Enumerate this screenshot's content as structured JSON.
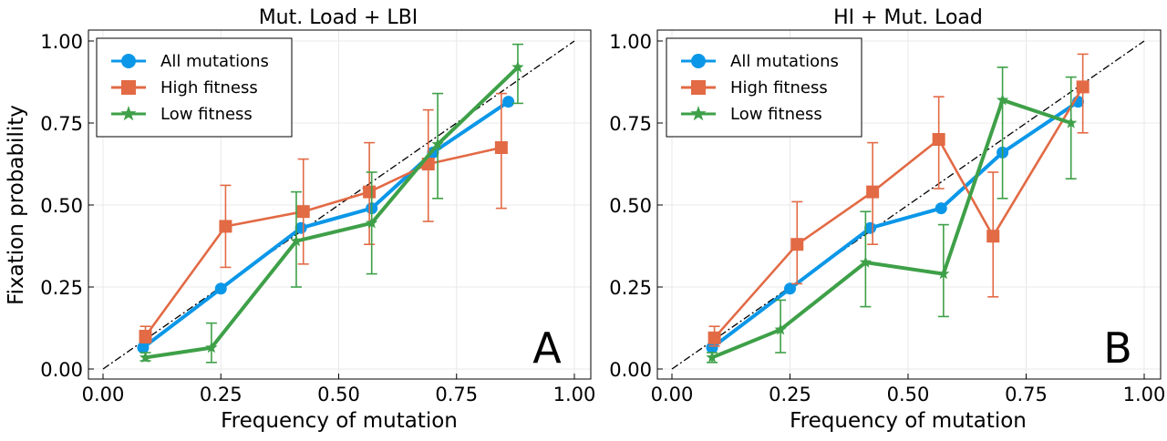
{
  "shared": {
    "ylabel": "Fixation probability",
    "legend_labels": [
      "All mutations",
      "High fitness",
      "Low fitness"
    ],
    "colors": {
      "all": "#0b97e8",
      "high": "#e26a45",
      "low": "#3ea048"
    }
  },
  "chart_data": [
    {
      "type": "line",
      "title": "Mut. Load + LBI",
      "panel_label": "A",
      "xlabel": "Frequency of mutation",
      "ylabel": "Fixation probability",
      "xlim": [
        0,
        1
      ],
      "ylim": [
        0,
        1
      ],
      "xticks": [
        "0.00",
        "0.25",
        "0.50",
        "0.75",
        "1.00"
      ],
      "yticks": [
        "0.00",
        "0.25",
        "0.50",
        "0.75",
        "1.00"
      ],
      "grid": true,
      "legend_position": "top-left",
      "reference_line": "diagonal y = x",
      "series": [
        {
          "name": "All mutations",
          "color": "#0b97e8",
          "marker": "circle",
          "x": [
            0.085,
            0.25,
            0.42,
            0.57,
            0.7,
            0.86
          ],
          "y": [
            0.065,
            0.245,
            0.43,
            0.49,
            0.66,
            0.815
          ]
        },
        {
          "name": "High fitness",
          "color": "#e26a45",
          "marker": "square",
          "x": [
            0.09,
            0.26,
            0.425,
            0.565,
            0.69,
            0.845
          ],
          "y": [
            0.1,
            0.435,
            0.48,
            0.54,
            0.625,
            0.675
          ],
          "ylow": [
            0.08,
            0.31,
            0.32,
            0.38,
            0.45,
            0.49
          ],
          "yhigh": [
            0.13,
            0.56,
            0.64,
            0.69,
            0.79,
            0.84
          ]
        },
        {
          "name": "Low fitness",
          "color": "#3ea048",
          "marker": "star",
          "x": [
            0.09,
            0.23,
            0.41,
            0.57,
            0.71,
            0.88
          ],
          "y": [
            0.035,
            0.065,
            0.39,
            0.445,
            0.685,
            0.92
          ],
          "ylow": [
            0.025,
            0.02,
            0.25,
            0.29,
            0.52,
            0.81
          ],
          "yhigh": [
            0.05,
            0.14,
            0.54,
            0.6,
            0.84,
            0.99
          ]
        }
      ]
    },
    {
      "type": "line",
      "title": "HI + Mut. Load",
      "panel_label": "B",
      "xlabel": "Frequency of mutation",
      "xlim": [
        0,
        1
      ],
      "ylim": [
        0,
        1
      ],
      "xticks": [
        "0.00",
        "0.25",
        "0.50",
        "0.75",
        "1.00"
      ],
      "yticks": [
        "0.00",
        "0.25",
        "0.50",
        "0.75",
        "1.00"
      ],
      "grid": true,
      "legend_position": "top-left",
      "reference_line": "diagonal y = x",
      "series": [
        {
          "name": "All mutations",
          "color": "#0b97e8",
          "marker": "circle",
          "x": [
            0.085,
            0.25,
            0.42,
            0.57,
            0.7,
            0.86
          ],
          "y": [
            0.065,
            0.245,
            0.43,
            0.49,
            0.66,
            0.815
          ]
        },
        {
          "name": "High fitness",
          "color": "#e26a45",
          "marker": "square",
          "x": [
            0.09,
            0.265,
            0.425,
            0.565,
            0.68,
            0.87
          ],
          "y": [
            0.095,
            0.38,
            0.54,
            0.7,
            0.405,
            0.86
          ],
          "ylow": [
            0.07,
            0.26,
            0.38,
            0.55,
            0.22,
            0.72
          ],
          "yhigh": [
            0.13,
            0.51,
            0.69,
            0.83,
            0.6,
            0.96
          ]
        },
        {
          "name": "Low fitness",
          "color": "#3ea048",
          "marker": "star",
          "x": [
            0.085,
            0.23,
            0.41,
            0.575,
            0.7,
            0.845
          ],
          "y": [
            0.035,
            0.12,
            0.325,
            0.29,
            0.82,
            0.75
          ],
          "ylow": [
            0.02,
            0.05,
            0.19,
            0.16,
            0.52,
            0.58
          ],
          "yhigh": [
            0.05,
            0.21,
            0.48,
            0.44,
            0.92,
            0.89
          ]
        }
      ]
    }
  ]
}
